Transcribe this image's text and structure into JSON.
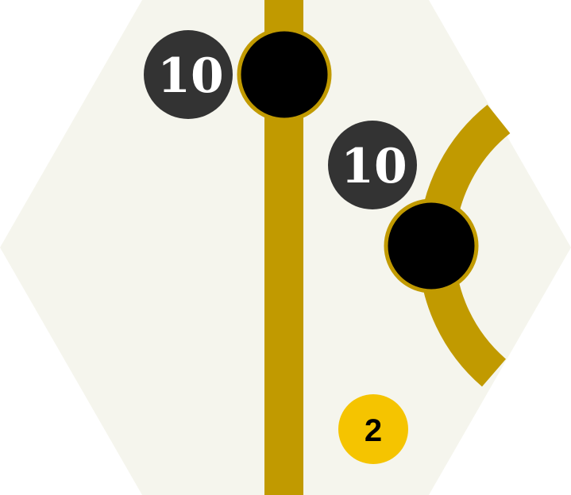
{
  "tile": {
    "background_color": "#f5f5ed",
    "track_color": "#c19a00",
    "city_color": "#000000",
    "city_outline_color": "#c19a00",
    "revenue_badge_color": "#333333",
    "revenue_text_color": "#ffffff"
  },
  "cities": [
    {
      "id": "city-top",
      "revenue": "10"
    },
    {
      "id": "city-right",
      "revenue": "10"
    }
  ],
  "marker": {
    "label": "2",
    "color": "#f5c400",
    "text_color": "#000000"
  }
}
